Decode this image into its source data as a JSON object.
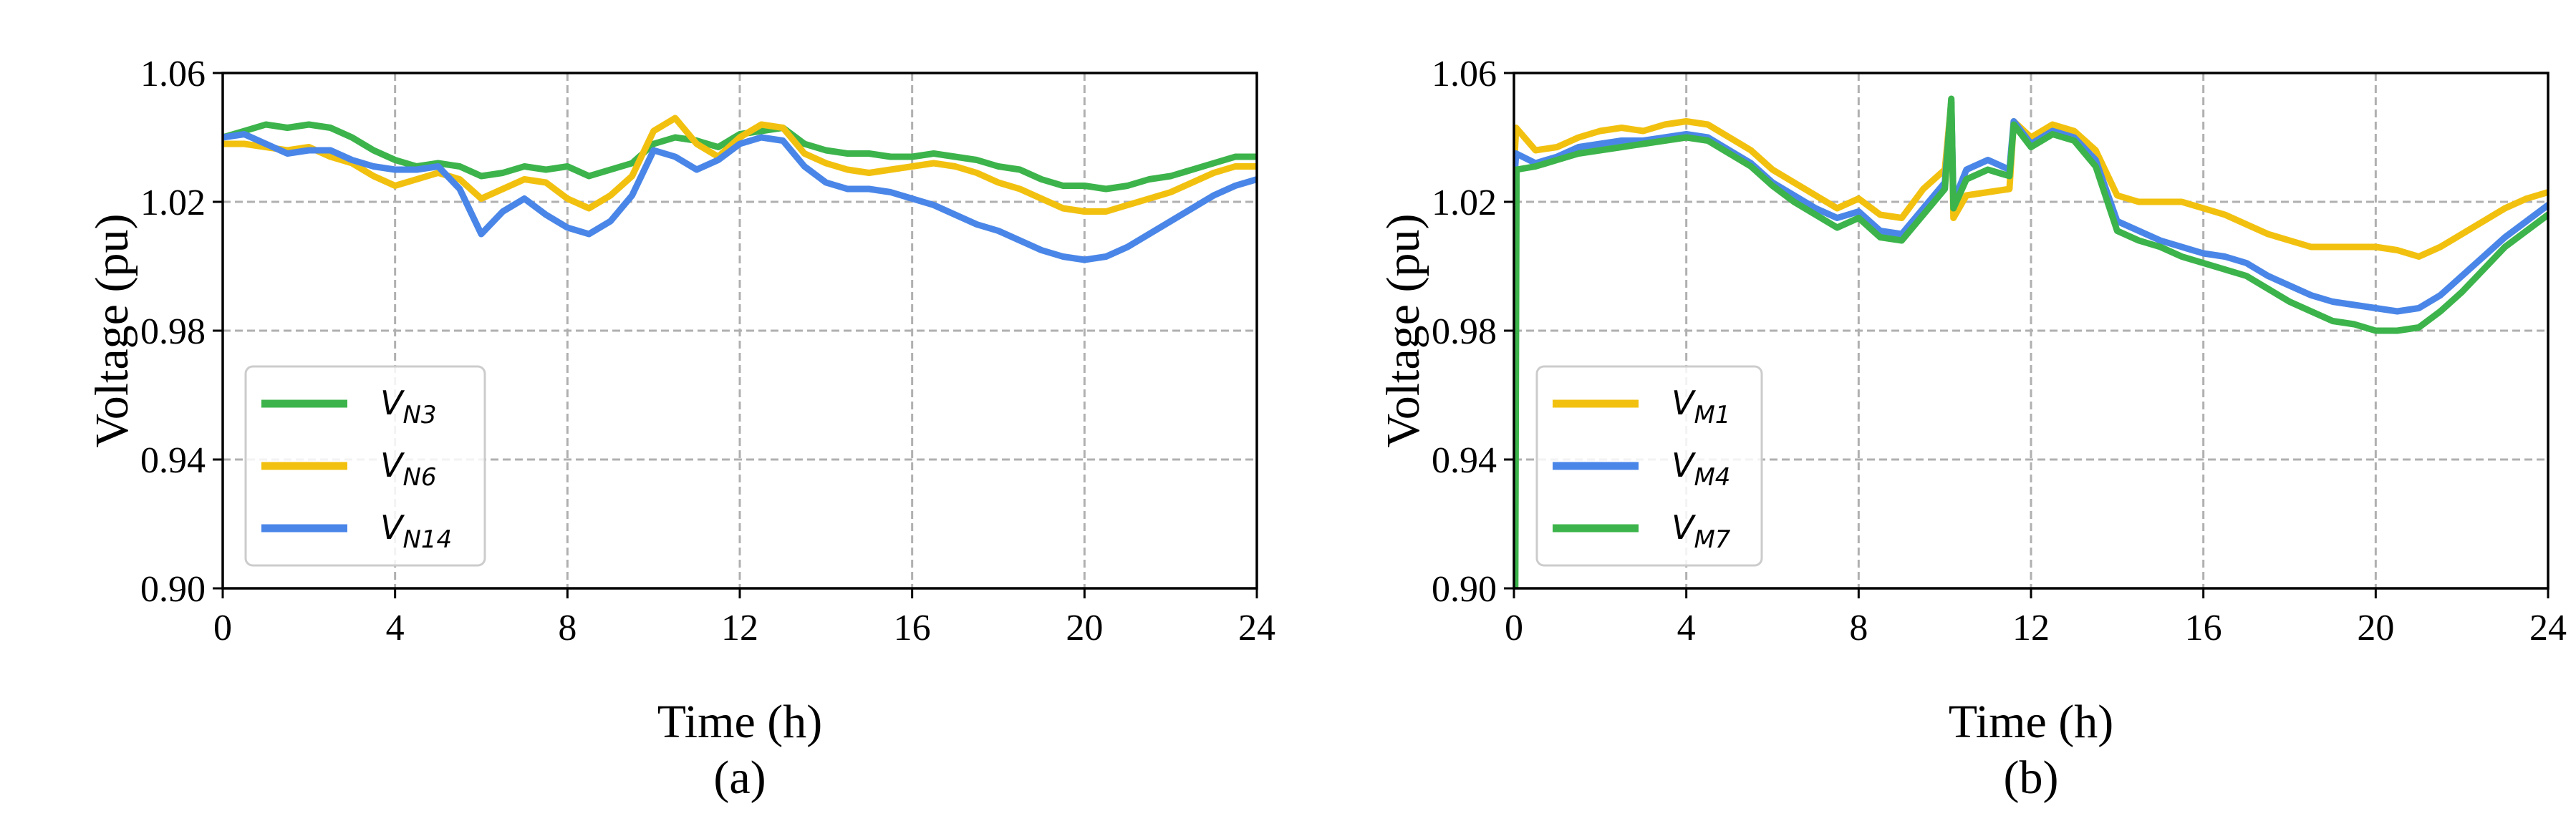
{
  "chart_data": [
    {
      "type": "line",
      "panel_label": "(a)",
      "xlabel": "Time (h)",
      "ylabel": "Voltage (pu)",
      "xlim": [
        0,
        24
      ],
      "ylim": [
        0.9,
        1.06
      ],
      "xticks": [
        0,
        4,
        8,
        12,
        16,
        20,
        24
      ],
      "xtick_labels": [
        "0",
        "4",
        "8",
        "12",
        "16",
        "20",
        "24"
      ],
      "yticks": [
        0.9,
        0.94,
        0.98,
        1.02,
        1.06
      ],
      "ytick_labels": [
        "0.90",
        "0.94",
        "0.98",
        "1.02",
        "1.06"
      ],
      "grid": true,
      "legend_position": "lower-left",
      "series": [
        {
          "name": "V_N3",
          "base": "V",
          "sub": "N3",
          "color": "#3cb44b",
          "x": [
            0,
            0.5,
            1,
            1.5,
            2,
            2.5,
            3,
            3.5,
            4,
            4.5,
            5,
            5.5,
            6,
            6.5,
            7,
            7.5,
            8,
            8.5,
            9,
            9.5,
            10,
            10.5,
            11,
            11.5,
            12,
            12.5,
            13,
            13.5,
            14,
            14.5,
            15,
            15.5,
            16,
            16.5,
            17,
            17.5,
            18,
            18.5,
            19,
            19.5,
            20,
            20.5,
            21,
            21.5,
            22,
            22.5,
            23,
            23.5,
            24
          ],
          "values": [
            1.04,
            1.042,
            1.044,
            1.043,
            1.044,
            1.043,
            1.04,
            1.036,
            1.033,
            1.031,
            1.032,
            1.031,
            1.028,
            1.029,
            1.031,
            1.03,
            1.031,
            1.028,
            1.03,
            1.032,
            1.038,
            1.04,
            1.039,
            1.037,
            1.041,
            1.042,
            1.043,
            1.038,
            1.036,
            1.035,
            1.035,
            1.034,
            1.034,
            1.035,
            1.034,
            1.033,
            1.031,
            1.03,
            1.027,
            1.025,
            1.025,
            1.024,
            1.025,
            1.027,
            1.028,
            1.03,
            1.032,
            1.034,
            1.034
          ]
        },
        {
          "name": "V_N6",
          "base": "V",
          "sub": "N6",
          "color": "#f2c10f",
          "x": [
            0,
            0.5,
            1,
            1.5,
            2,
            2.5,
            3,
            3.5,
            4,
            4.5,
            5,
            5.5,
            6,
            6.5,
            7,
            7.5,
            8,
            8.5,
            9,
            9.5,
            10,
            10.5,
            11,
            11.5,
            12,
            12.5,
            13,
            13.5,
            14,
            14.5,
            15,
            15.5,
            16,
            16.5,
            17,
            17.5,
            18,
            18.5,
            19,
            19.5,
            20,
            20.5,
            21,
            21.5,
            22,
            22.5,
            23,
            23.5,
            24
          ],
          "values": [
            1.038,
            1.038,
            1.037,
            1.036,
            1.037,
            1.034,
            1.032,
            1.028,
            1.025,
            1.027,
            1.029,
            1.027,
            1.021,
            1.024,
            1.027,
            1.026,
            1.021,
            1.018,
            1.022,
            1.028,
            1.042,
            1.046,
            1.038,
            1.034,
            1.04,
            1.044,
            1.043,
            1.035,
            1.032,
            1.03,
            1.029,
            1.03,
            1.031,
            1.032,
            1.031,
            1.029,
            1.026,
            1.024,
            1.021,
            1.018,
            1.017,
            1.017,
            1.019,
            1.021,
            1.023,
            1.026,
            1.029,
            1.031,
            1.031
          ]
        },
        {
          "name": "V_N14",
          "base": "V",
          "sub": "N14",
          "color": "#4a86e8",
          "x": [
            0,
            0.5,
            1,
            1.5,
            2,
            2.5,
            3,
            3.5,
            4,
            4.5,
            5,
            5.5,
            6,
            6.5,
            7,
            7.5,
            8,
            8.5,
            9,
            9.5,
            10,
            10.5,
            11,
            11.5,
            12,
            12.5,
            13,
            13.5,
            14,
            14.5,
            15,
            15.5,
            16,
            16.5,
            17,
            17.5,
            18,
            18.5,
            19,
            19.5,
            20,
            20.5,
            21,
            21.5,
            22,
            22.5,
            23,
            23.5,
            24
          ],
          "values": [
            1.04,
            1.041,
            1.038,
            1.035,
            1.036,
            1.036,
            1.033,
            1.031,
            1.03,
            1.03,
            1.031,
            1.024,
            1.01,
            1.017,
            1.021,
            1.016,
            1.012,
            1.01,
            1.014,
            1.022,
            1.036,
            1.034,
            1.03,
            1.033,
            1.038,
            1.04,
            1.039,
            1.031,
            1.026,
            1.024,
            1.024,
            1.023,
            1.021,
            1.019,
            1.016,
            1.013,
            1.011,
            1.008,
            1.005,
            1.003,
            1.002,
            1.003,
            1.006,
            1.01,
            1.014,
            1.018,
            1.022,
            1.025,
            1.027
          ]
        }
      ]
    },
    {
      "type": "line",
      "panel_label": "(b)",
      "xlabel": "Time (h)",
      "ylabel": "Voltage (pu)",
      "xlim": [
        0,
        24
      ],
      "ylim": [
        0.9,
        1.06
      ],
      "xticks": [
        0,
        4,
        8,
        12,
        16,
        20,
        24
      ],
      "xtick_labels": [
        "0",
        "4",
        "8",
        "12",
        "16",
        "20",
        "24"
      ],
      "yticks": [
        0.9,
        0.94,
        0.98,
        1.02,
        1.06
      ],
      "ytick_labels": [
        "0.90",
        "0.94",
        "0.98",
        "1.02",
        "1.06"
      ],
      "grid": true,
      "legend_position": "lower-left",
      "series": [
        {
          "name": "V_M1",
          "base": "V",
          "sub": "M1",
          "color": "#f2c10f",
          "x": [
            0,
            0.05,
            0.5,
            1,
            1.5,
            2,
            2.5,
            3,
            3.5,
            4,
            4.5,
            5,
            5.5,
            6,
            6.5,
            7,
            7.5,
            8,
            8.5,
            9,
            9.5,
            10,
            10.15,
            10.2,
            10.5,
            11,
            11.5,
            11.6,
            12,
            12.5,
            13,
            13.5,
            14,
            14.5,
            15,
            15.5,
            16,
            16.5,
            17,
            17.5,
            18,
            18.5,
            19,
            19.5,
            20,
            20.5,
            21,
            21.5,
            22,
            22.5,
            23,
            23.5,
            24
          ],
          "values": [
            1.03,
            1.043,
            1.036,
            1.037,
            1.04,
            1.042,
            1.043,
            1.042,
            1.044,
            1.045,
            1.044,
            1.04,
            1.036,
            1.03,
            1.026,
            1.022,
            1.018,
            1.021,
            1.016,
            1.015,
            1.024,
            1.03,
            1.051,
            1.015,
            1.022,
            1.023,
            1.024,
            1.045,
            1.04,
            1.044,
            1.042,
            1.036,
            1.022,
            1.02,
            1.02,
            1.02,
            1.018,
            1.016,
            1.013,
            1.01,
            1.008,
            1.006,
            1.006,
            1.006,
            1.006,
            1.005,
            1.003,
            1.006,
            1.01,
            1.014,
            1.018,
            1.021,
            1.023
          ]
        },
        {
          "name": "V_M4",
          "base": "V",
          "sub": "M4",
          "color": "#4a86e8",
          "x": [
            0,
            0.05,
            0.5,
            1,
            1.5,
            2,
            2.5,
            3,
            3.5,
            4,
            4.5,
            5,
            5.5,
            6,
            6.5,
            7,
            7.5,
            8,
            8.5,
            9,
            9.5,
            10,
            10.15,
            10.2,
            10.5,
            11,
            11.5,
            11.6,
            12,
            12.5,
            13,
            13.5,
            14,
            14.5,
            15,
            15.5,
            16,
            16.5,
            17,
            17.5,
            18,
            18.5,
            19,
            19.5,
            20,
            20.5,
            21,
            21.5,
            22,
            22.5,
            23,
            23.5,
            24
          ],
          "values": [
            1.025,
            1.035,
            1.032,
            1.034,
            1.037,
            1.038,
            1.039,
            1.039,
            1.04,
            1.041,
            1.04,
            1.036,
            1.032,
            1.026,
            1.022,
            1.018,
            1.015,
            1.017,
            1.011,
            1.01,
            1.018,
            1.026,
            1.051,
            1.02,
            1.03,
            1.033,
            1.03,
            1.045,
            1.038,
            1.042,
            1.04,
            1.033,
            1.014,
            1.011,
            1.008,
            1.006,
            1.004,
            1.003,
            1.001,
            0.997,
            0.994,
            0.991,
            0.989,
            0.988,
            0.987,
            0.986,
            0.987,
            0.991,
            0.997,
            1.003,
            1.009,
            1.014,
            1.019
          ]
        },
        {
          "name": "V_M7",
          "base": "V",
          "sub": "M7",
          "color": "#3cb44b",
          "x": [
            0,
            0.03,
            0.06,
            0.5,
            1,
            1.5,
            2,
            2.5,
            3,
            3.5,
            4,
            4.5,
            5,
            5.5,
            6,
            6.5,
            7,
            7.5,
            8,
            8.5,
            9,
            9.5,
            10,
            10.15,
            10.2,
            10.5,
            11,
            11.5,
            11.6,
            12,
            12.5,
            13,
            13.5,
            14,
            14.5,
            15,
            15.5,
            16,
            16.5,
            17,
            17.5,
            18,
            18.5,
            19,
            19.5,
            20,
            20.5,
            21,
            21.5,
            22,
            22.5,
            23,
            23.5,
            24
          ],
          "values": [
            0.9,
            0.9,
            1.03,
            1.031,
            1.033,
            1.035,
            1.036,
            1.037,
            1.038,
            1.039,
            1.04,
            1.039,
            1.035,
            1.031,
            1.025,
            1.02,
            1.016,
            1.012,
            1.015,
            1.009,
            1.008,
            1.016,
            1.024,
            1.052,
            1.018,
            1.027,
            1.03,
            1.028,
            1.044,
            1.037,
            1.041,
            1.039,
            1.031,
            1.011,
            1.008,
            1.006,
            1.003,
            1.001,
            0.999,
            0.997,
            0.993,
            0.989,
            0.986,
            0.983,
            0.982,
            0.98,
            0.98,
            0.981,
            0.986,
            0.992,
            0.999,
            1.006,
            1.011,
            1.016
          ]
        }
      ]
    }
  ]
}
